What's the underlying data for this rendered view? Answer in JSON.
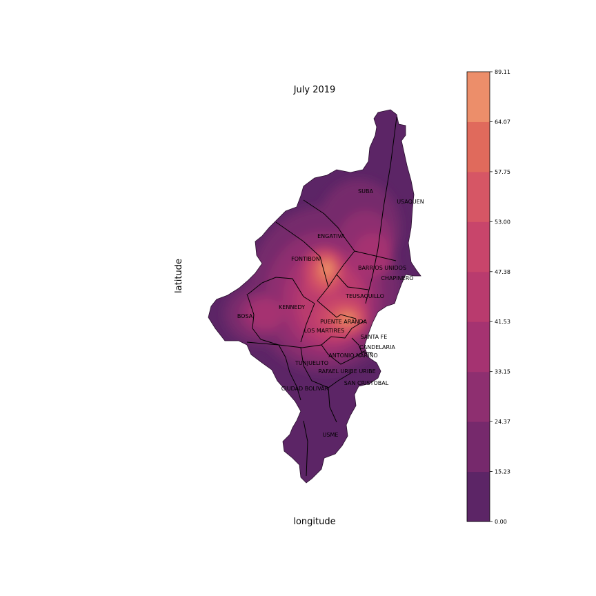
{
  "title": "July 2019",
  "xlabel": "longitude",
  "ylabel": "latitude",
  "colorbar": {
    "levels": [
      "0.00",
      "15.23",
      "24.37",
      "33.15",
      "41.53",
      "47.38",
      "53.00",
      "57.75",
      "64.07",
      "89.11"
    ],
    "colors": [
      "#5c2566",
      "#76296c",
      "#8e2f70",
      "#a53371",
      "#b93b6e",
      "#c8456b",
      "#d65665",
      "#e06a5c",
      "#ec8e6a"
    ]
  },
  "localities": {
    "suba": "SUBA",
    "usaquen": "USAQUEN",
    "engativa": "ENGATIVA",
    "fontibon": "FONTIBON",
    "barrios_unidos": "BARRIOS UNIDOS",
    "chapinero": "CHAPINERO",
    "teusaquillo": "TEUSAQUILLO",
    "kennedy": "KENNEDY",
    "bosa": "BOSA",
    "puente_aranda": "PUENTE ARANDA",
    "los_martires": "LOS MARTIRES",
    "santa_fe": "SANTA FE",
    "candelaria": "CANDELARIA",
    "antonio_narino": "ANTONIO NARIÑO",
    "tunjuelito": "TUNJUELITO",
    "rafael_uribe": "RAFAEL URIBE URIBE",
    "ciudad_bolivar": "CIUDAD BOLIVAR",
    "san_cristobal": "SAN CRISTOBAL",
    "usme": "USME"
  }
}
